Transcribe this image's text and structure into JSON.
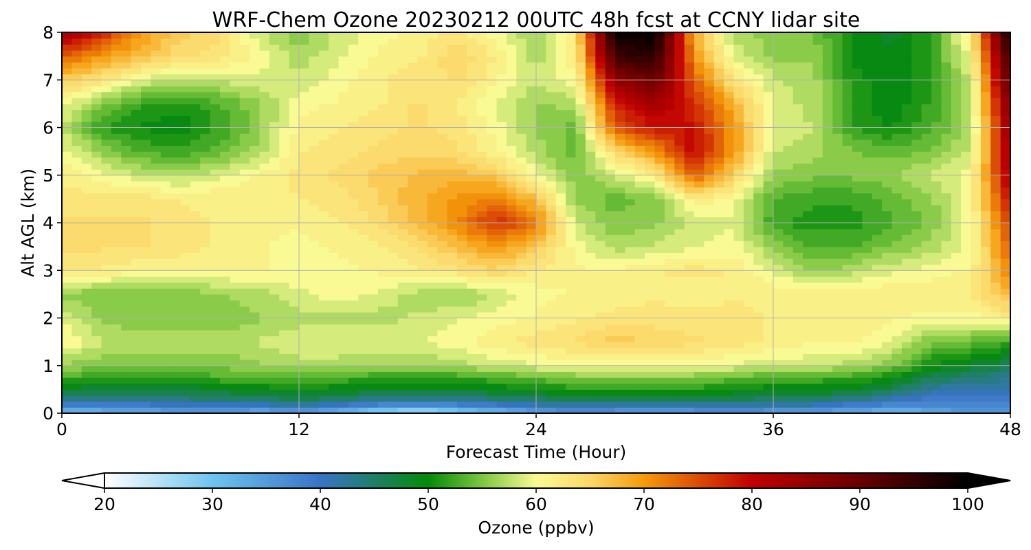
{
  "chart_data": {
    "type": "heatmap",
    "title": "WRF-Chem Ozone  20230212 00UTC 48h fcst at CCNY lidar site",
    "xlabel": "Forecast Time (Hour)",
    "ylabel": "Alt AGL (km)",
    "xlim": [
      0,
      48
    ],
    "ylim": [
      0,
      8
    ],
    "x_ticks": [
      "0",
      "12",
      "24",
      "36",
      "48"
    ],
    "y_ticks": [
      "0",
      "1",
      "2",
      "3",
      "4",
      "5",
      "6",
      "7",
      "8"
    ],
    "grid": true,
    "x": [
      0,
      2,
      4,
      6,
      8,
      10,
      12,
      14,
      16,
      18,
      20,
      22,
      24,
      26,
      28,
      30,
      32,
      34,
      36,
      38,
      40,
      42,
      44,
      46,
      48
    ],
    "y": [
      0,
      0.25,
      0.5,
      0.75,
      1,
      1.5,
      2,
      2.5,
      3,
      3.5,
      4,
      4.5,
      5,
      5.5,
      6,
      6.5,
      7,
      7.5,
      8
    ],
    "z": [
      [
        30,
        31,
        32,
        34,
        33,
        32,
        33,
        31,
        26,
        24,
        27,
        30,
        33,
        35,
        34,
        33,
        34,
        35,
        34,
        33,
        32,
        30,
        33,
        36,
        36
      ],
      [
        42,
        42,
        42,
        43,
        44,
        44,
        45,
        44,
        42,
        41,
        42,
        43,
        44,
        45,
        45,
        45,
        45,
        45,
        44,
        44,
        42,
        40,
        38,
        38,
        38
      ],
      [
        48,
        47,
        47,
        47,
        48,
        49,
        50,
        49,
        48,
        48,
        48,
        49,
        50,
        51,
        51,
        51,
        51,
        50,
        49,
        49,
        48,
        46,
        42,
        41,
        41
      ],
      [
        53,
        52,
        52,
        52,
        53,
        53,
        54,
        53,
        52,
        52,
        52,
        53,
        54,
        55,
        55,
        55,
        55,
        54,
        53,
        53,
        52,
        50,
        46,
        44,
        43
      ],
      [
        56,
        55,
        55,
        55,
        55,
        56,
        57,
        57,
        56,
        56,
        57,
        58,
        59,
        60,
        60,
        60,
        60,
        59,
        58,
        58,
        57,
        55,
        50,
        48,
        46
      ],
      [
        61,
        58,
        57,
        57,
        57,
        58,
        59,
        59,
        59,
        59,
        60,
        62,
        63,
        64,
        66,
        65,
        64,
        63,
        62,
        61,
        61,
        59,
        55,
        54,
        52
      ],
      [
        59,
        56,
        55,
        55,
        55,
        56,
        57,
        57,
        57,
        58,
        59,
        60,
        61,
        62,
        63,
        63,
        63,
        63,
        62,
        62,
        62,
        61,
        60,
        60,
        62
      ],
      [
        56,
        55,
        55,
        55,
        56,
        57,
        59,
        60,
        59,
        57,
        56,
        58,
        60,
        61,
        61,
        62,
        61,
        62,
        62,
        62,
        62,
        62,
        62,
        62,
        68
      ],
      [
        62,
        62,
        61,
        61,
        61,
        61,
        60,
        60,
        61,
        62,
        63,
        65,
        62,
        61,
        61,
        62,
        63,
        62,
        59,
        56,
        57,
        59,
        60,
        61,
        72
      ],
      [
        64,
        64,
        64,
        63,
        62,
        61,
        60,
        61,
        62,
        64,
        67,
        70,
        66,
        60,
        57,
        58,
        59,
        60,
        56,
        53,
        53,
        55,
        57,
        60,
        74
      ],
      [
        64,
        64,
        64,
        63,
        62,
        61,
        61,
        62,
        64,
        67,
        71,
        77,
        72,
        58,
        55,
        56,
        58,
        59,
        52,
        51,
        51,
        53,
        55,
        60,
        76
      ],
      [
        63,
        63,
        63,
        62,
        62,
        62,
        62,
        63,
        65,
        68,
        70,
        72,
        67,
        56,
        54,
        55,
        62,
        60,
        53,
        52,
        52,
        54,
        56,
        60,
        80
      ],
      [
        62,
        60,
        58,
        57,
        59,
        61,
        63,
        64,
        66,
        67,
        68,
        66,
        60,
        55,
        58,
        62,
        74,
        65,
        56,
        55,
        55,
        56,
        58,
        60,
        83
      ],
      [
        60,
        56,
        53,
        52,
        54,
        57,
        62,
        63,
        64,
        65,
        64,
        61,
        57,
        54,
        64,
        70,
        80,
        70,
        58,
        57,
        55,
        54,
        55,
        58,
        84
      ],
      [
        58,
        52,
        50,
        49,
        52,
        56,
        61,
        62,
        63,
        64,
        63,
        60,
        56,
        54,
        74,
        79,
        79,
        70,
        58,
        58,
        52,
        50,
        53,
        57,
        86
      ],
      [
        60,
        55,
        52,
        51,
        53,
        56,
        60,
        61,
        62,
        64,
        62,
        59,
        56,
        57,
        78,
        83,
        77,
        68,
        59,
        57,
        51,
        49,
        52,
        57,
        88
      ],
      [
        66,
        63,
        59,
        57,
        58,
        59,
        58,
        60,
        62,
        63,
        64,
        61,
        58,
        60,
        85,
        90,
        74,
        63,
        58,
        57,
        51,
        49,
        52,
        58,
        92
      ],
      [
        74,
        70,
        67,
        64,
        63,
        60,
        57,
        59,
        61,
        62,
        65,
        62,
        57,
        62,
        94,
        96,
        70,
        59,
        56,
        56,
        50,
        49,
        52,
        60,
        95
      ],
      [
        84,
        78,
        70,
        66,
        64,
        58,
        55,
        58,
        60,
        61,
        63,
        60,
        56,
        63,
        99,
        100,
        68,
        57,
        55,
        55,
        50,
        48,
        52,
        62,
        100
      ]
    ],
    "colorbar": {
      "label": "Ozone  (ppbv)",
      "min": 20,
      "max": 100,
      "ticks": [
        "20",
        "30",
        "40",
        "50",
        "60",
        "70",
        "80",
        "90",
        "100"
      ],
      "extend": "both",
      "stops": [
        {
          "v": 20,
          "c": "#ffffff"
        },
        {
          "v": 30,
          "c": "#6ec4ee"
        },
        {
          "v": 40,
          "c": "#3b73c6"
        },
        {
          "v": 50,
          "c": "#048a08"
        },
        {
          "v": 55,
          "c": "#7dc742"
        },
        {
          "v": 60,
          "c": "#fafa95"
        },
        {
          "v": 65,
          "c": "#fbd769"
        },
        {
          "v": 70,
          "c": "#f59a0c"
        },
        {
          "v": 80,
          "c": "#c00000"
        },
        {
          "v": 90,
          "c": "#680000"
        },
        {
          "v": 100,
          "c": "#000000"
        }
      ]
    }
  }
}
